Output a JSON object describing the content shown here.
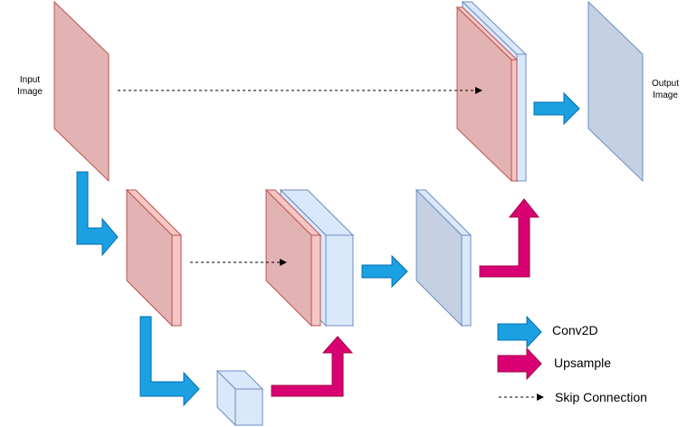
{
  "labels": {
    "input": "Input\nImage",
    "output": "Output\nImage"
  },
  "legend": {
    "conv": "Conv2D",
    "upsample": "Upsample",
    "skip": "Skip Connection"
  },
  "colors": {
    "encoder_fill": "#e2b3b2",
    "encoder_stroke": "#b85450",
    "decoder_fill": "#c5d1e3",
    "decoder_stroke": "#6c8ebf",
    "bottleneck_fill": "#dae8fc",
    "conv_arrow": "#1ba1e2",
    "upsample_arrow": "#d80073"
  }
}
